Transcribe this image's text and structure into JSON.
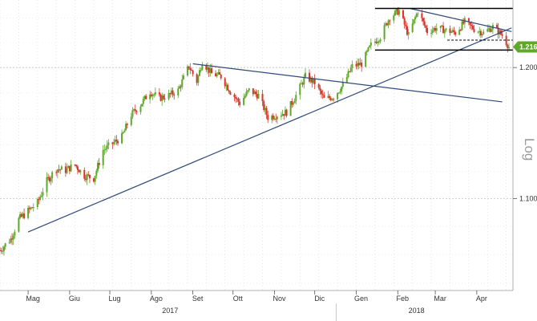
{
  "chart_data": {
    "type": "candlestick",
    "scale": "log",
    "scale_label": "Log",
    "ylim": [
      1.035,
      1.255
    ],
    "y_ticks": [
      {
        "value": 1.2,
        "label": "1.2000"
      },
      {
        "value": 1.1,
        "label": "1.1000"
      }
    ],
    "last_price": {
      "value": 1.2165,
      "label": "1.2165"
    },
    "x_ticks": [
      {
        "date": "2017-05-01",
        "label": "Mag"
      },
      {
        "date": "2017-06-01",
        "label": "Giu"
      },
      {
        "date": "2017-07-01",
        "label": "Lug"
      },
      {
        "date": "2017-08-01",
        "label": "Ago"
      },
      {
        "date": "2017-09-01",
        "label": "Set"
      },
      {
        "date": "2017-10-01",
        "label": "Ott"
      },
      {
        "date": "2017-11-01",
        "label": "Nov"
      },
      {
        "date": "2017-12-01",
        "label": "Dic"
      },
      {
        "date": "2018-01-01",
        "label": "Gen"
      },
      {
        "date": "2018-02-01",
        "label": "Feb"
      },
      {
        "date": "2018-03-01",
        "label": "Mar"
      },
      {
        "date": "2018-04-01",
        "label": "Apr"
      }
    ],
    "year_labels": [
      {
        "date": "2017-08-15",
        "label": "2017"
      },
      {
        "date": "2018-02-15",
        "label": "2018"
      }
    ],
    "x_range": [
      "2017-04-10",
      "2018-04-28"
    ],
    "up_color": "#5fa82a",
    "down_color": "#d9342b",
    "trendline_color": "#2f4a7a",
    "channel_color": "#000000",
    "price_tag_color": "#5fa82a",
    "grid": true,
    "price_path": [
      [
        "2017-04-10",
        1.063
      ],
      [
        "2017-04-18",
        1.071
      ],
      [
        "2017-04-24",
        1.085
      ],
      [
        "2017-05-01",
        1.091
      ],
      [
        "2017-05-08",
        1.097
      ],
      [
        "2017-05-15",
        1.113
      ],
      [
        "2017-05-22",
        1.122
      ],
      [
        "2017-05-29",
        1.121
      ],
      [
        "2017-06-05",
        1.125
      ],
      [
        "2017-06-12",
        1.117
      ],
      [
        "2017-06-19",
        1.115
      ],
      [
        "2017-06-26",
        1.136
      ],
      [
        "2017-07-03",
        1.141
      ],
      [
        "2017-07-10",
        1.146
      ],
      [
        "2017-07-17",
        1.163
      ],
      [
        "2017-07-24",
        1.171
      ],
      [
        "2017-07-31",
        1.181
      ],
      [
        "2017-08-07",
        1.176
      ],
      [
        "2017-08-14",
        1.178
      ],
      [
        "2017-08-21",
        1.182
      ],
      [
        "2017-08-29",
        1.201
      ],
      [
        "2017-09-04",
        1.189
      ],
      [
        "2017-09-08",
        1.205
      ],
      [
        "2017-09-15",
        1.195
      ],
      [
        "2017-09-22",
        1.193
      ],
      [
        "2017-09-29",
        1.181
      ],
      [
        "2017-10-06",
        1.172
      ],
      [
        "2017-10-13",
        1.182
      ],
      [
        "2017-10-20",
        1.178
      ],
      [
        "2017-10-27",
        1.161
      ],
      [
        "2017-11-03",
        1.163
      ],
      [
        "2017-11-10",
        1.165
      ],
      [
        "2017-11-17",
        1.178
      ],
      [
        "2017-11-24",
        1.193
      ],
      [
        "2017-12-01",
        1.188
      ],
      [
        "2017-12-08",
        1.175
      ],
      [
        "2017-12-15",
        1.177
      ],
      [
        "2017-12-22",
        1.186
      ],
      [
        "2017-12-29",
        1.201
      ],
      [
        "2018-01-05",
        1.203
      ],
      [
        "2018-01-12",
        1.218
      ],
      [
        "2018-01-19",
        1.225
      ],
      [
        "2018-01-26",
        1.241
      ],
      [
        "2018-02-02",
        1.246
      ],
      [
        "2018-02-09",
        1.226
      ],
      [
        "2018-02-16",
        1.246
      ],
      [
        "2018-02-23",
        1.229
      ],
      [
        "2018-03-02",
        1.232
      ],
      [
        "2018-03-09",
        1.23
      ],
      [
        "2018-03-16",
        1.228
      ],
      [
        "2018-03-23",
        1.237
      ],
      [
        "2018-03-30",
        1.231
      ],
      [
        "2018-04-06",
        1.228
      ],
      [
        "2018-04-13",
        1.233
      ],
      [
        "2018-04-20",
        1.226
      ],
      [
        "2018-04-25",
        1.2165
      ]
    ],
    "trendlines": [
      {
        "from": [
          "2017-05-01",
          1.076
        ],
        "to": [
          "2018-04-27",
          1.232
        ]
      },
      {
        "from": [
          "2017-09-01",
          1.203
        ],
        "to": [
          "2018-04-20",
          1.173
        ]
      },
      {
        "from": [
          "2018-02-10",
          1.248
        ],
        "to": [
          "2018-04-27",
          1.229
        ]
      }
    ],
    "horizontal_lines": [
      {
        "value": 1.248,
        "from": "2018-01-15",
        "to": "2018-04-28",
        "style": "solid"
      },
      {
        "value": 1.214,
        "from": "2018-01-15",
        "to": "2018-04-28",
        "style": "solid"
      },
      {
        "value": 1.222,
        "from": "2018-03-10",
        "to": "2018-04-28",
        "style": "dashed"
      }
    ]
  }
}
